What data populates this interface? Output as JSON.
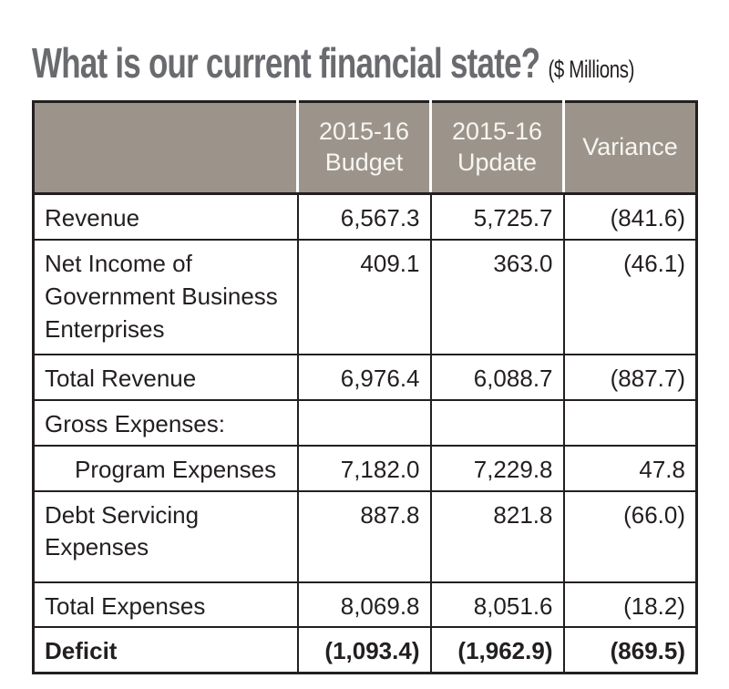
{
  "title": {
    "main": "What is our current financial state?",
    "suffix": "($ Millions)"
  },
  "colors": {
    "header_bg": "#9c948a",
    "header_text": "#f7f5f2",
    "border": "#231f20",
    "title_gray": "#6a6b6e",
    "body_text": "#231f20"
  },
  "table": {
    "header": {
      "label": "",
      "budget": "2015-16\nBudget",
      "update": "2015-16\nUpdate",
      "variance": "Variance"
    },
    "rows": [
      {
        "label": "Revenue",
        "budget": "6,567.3",
        "update": "5,725.7",
        "variance": "(841.6)"
      },
      {
        "label": "Net Income of Government Business Enterprises",
        "budget": "409.1",
        "update": "363.0",
        "variance": "(46.1)"
      },
      {
        "label": "Total Revenue",
        "budget": "6,976.4",
        "update": "6,088.7",
        "variance": "(887.7)"
      },
      {
        "label": "Gross Expenses:",
        "budget": "",
        "update": "",
        "variance": ""
      },
      {
        "label": "Program Expenses",
        "budget": "7,182.0",
        "update": "7,229.8",
        "variance": "47.8"
      },
      {
        "label": "Debt Servicing Expenses",
        "budget": "887.8",
        "update": "821.8",
        "variance": "(66.0)"
      },
      {
        "label": "Total Expenses",
        "budget": "8,069.8",
        "update": "8,051.6",
        "variance": "(18.2)"
      },
      {
        "label": "Deficit",
        "budget": "(1,093.4)",
        "update": "(1,962.9)",
        "variance": "(869.5)"
      }
    ]
  }
}
